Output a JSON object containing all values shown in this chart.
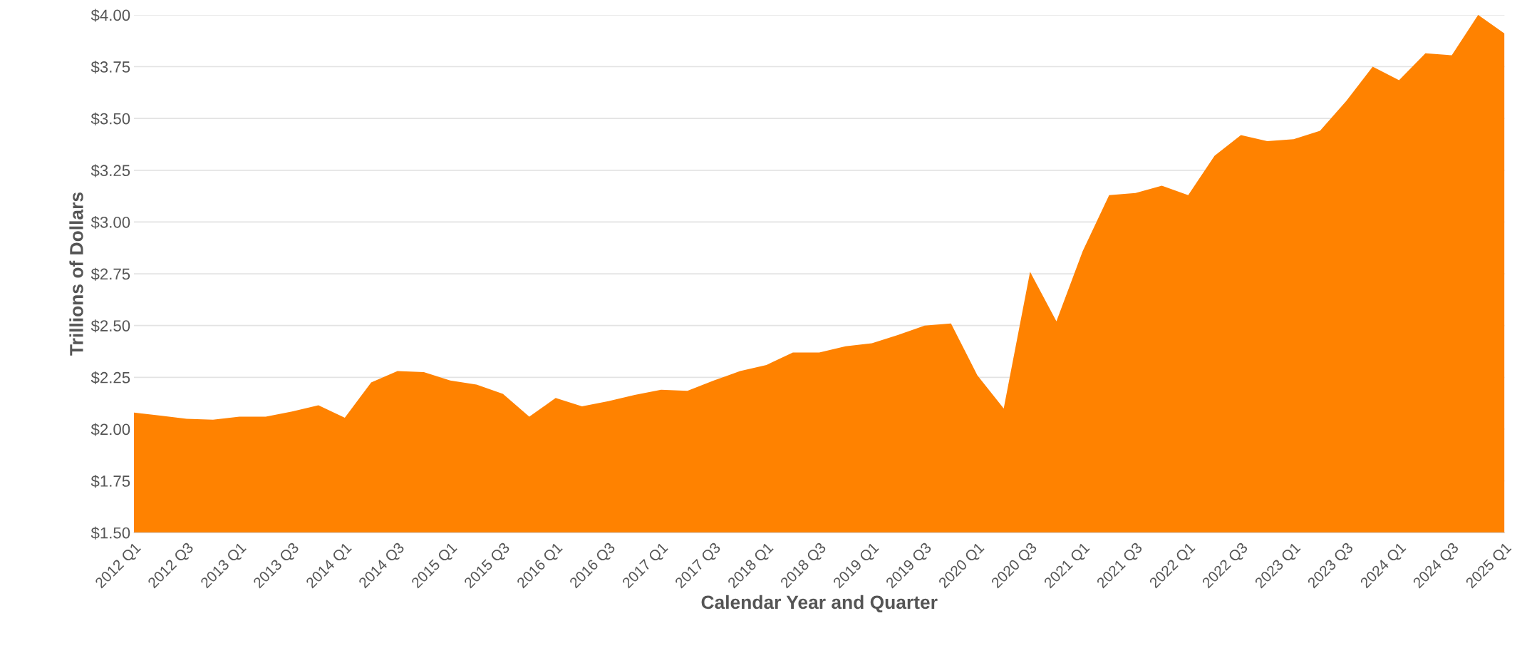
{
  "chart_data": {
    "type": "area",
    "xlabel": "Calendar Year and Quarter",
    "ylabel": "Trillions of Dollars",
    "categories": [
      "2012 Q1",
      null,
      "2012 Q3",
      null,
      "2013 Q1",
      null,
      "2013 Q3",
      null,
      "2014 Q1",
      null,
      "2014 Q3",
      null,
      "2015 Q1",
      null,
      "2015 Q3",
      null,
      "2016 Q1",
      null,
      "2016 Q3",
      null,
      "2017 Q1",
      null,
      "2017 Q3",
      null,
      "2018 Q1",
      null,
      "2018 Q3",
      null,
      "2019 Q1",
      null,
      "2019 Q3",
      null,
      "2020 Q1",
      null,
      "2020 Q3",
      null,
      "2021 Q1",
      null,
      "2021 Q3",
      null,
      "2022 Q1",
      null,
      "2022 Q3",
      null,
      "2023 Q1",
      null,
      "2023 Q3",
      null,
      "2024 Q1",
      null,
      "2024 Q3",
      null,
      "2025 Q1"
    ],
    "series": [
      {
        "color": "#ff8200",
        "values": [
          2.08,
          2.065,
          2.05,
          2.045,
          2.06,
          2.06,
          2.085,
          2.115,
          2.055,
          2.225,
          2.28,
          2.275,
          2.235,
          2.215,
          2.17,
          2.06,
          2.15,
          2.11,
          2.135,
          2.165,
          2.19,
          2.185,
          2.235,
          2.28,
          2.31,
          2.37,
          2.37,
          2.4,
          2.415,
          2.455,
          2.5,
          2.51,
          2.26,
          2.1,
          2.76,
          2.52,
          2.86,
          3.13,
          3.14,
          3.175,
          3.13,
          3.32,
          3.42,
          3.39,
          3.4,
          3.44,
          3.585,
          3.75,
          3.685,
          3.815,
          3.805,
          4.0,
          3.91
        ]
      }
    ],
    "ylim": [
      1.5,
      4.0
    ],
    "yticks": [
      {
        "value": 1.5,
        "label": "$1.50"
      },
      {
        "value": 1.75,
        "label": "$1.75"
      },
      {
        "value": 2.0,
        "label": "$2.00"
      },
      {
        "value": 2.25,
        "label": "$2.25"
      },
      {
        "value": 2.5,
        "label": "$2.50"
      },
      {
        "value": 2.75,
        "label": "$2.75"
      },
      {
        "value": 3.0,
        "label": "$3.00"
      },
      {
        "value": 3.25,
        "label": "$3.25"
      },
      {
        "value": 3.5,
        "label": "$3.50"
      },
      {
        "value": 3.75,
        "label": "$3.75"
      },
      {
        "value": 4.0,
        "label": "$4.00"
      }
    ],
    "grid": "y"
  }
}
